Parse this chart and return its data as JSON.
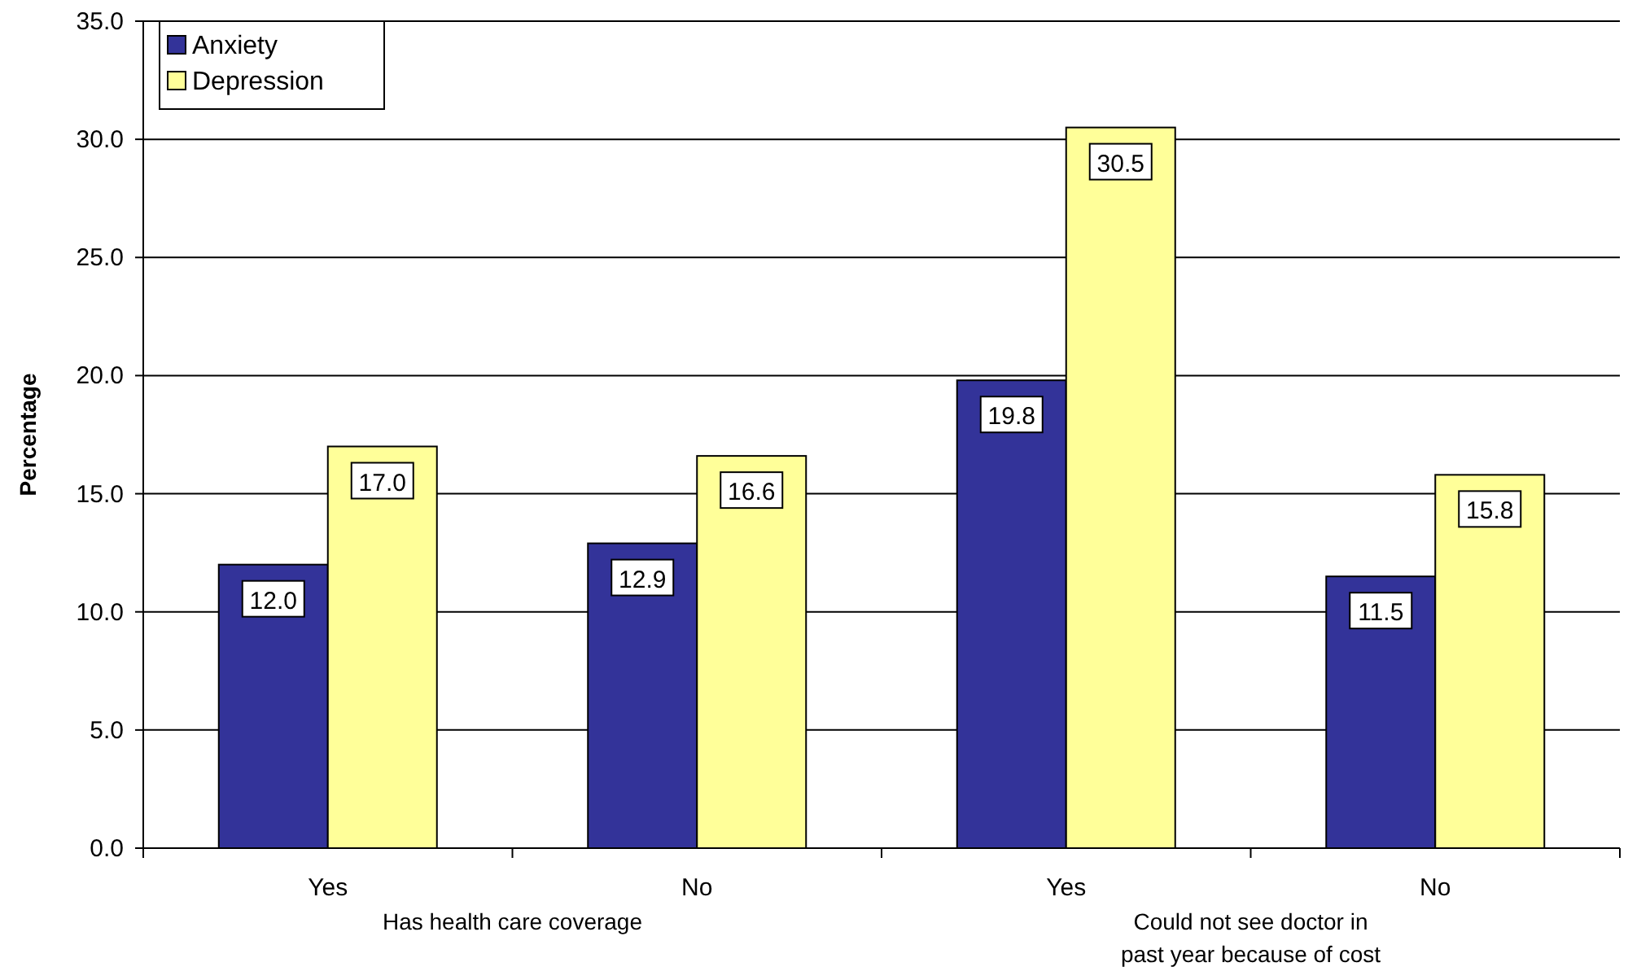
{
  "chart_data": {
    "type": "bar",
    "ylabel": "Percentage",
    "categories": [
      "Yes",
      "No",
      "Yes",
      "No"
    ],
    "annotations": [
      "Has health care coverage",
      "Could not see doctor in past year because of cost"
    ],
    "series": [
      {
        "name": "Anxiety",
        "color": "#333399",
        "values": [
          12.0,
          12.9,
          19.8,
          11.5
        ],
        "value_labels": [
          "12.0",
          "12.9",
          "19.8",
          "11.5"
        ]
      },
      {
        "name": "Depression",
        "color": "#ffff99",
        "values": [
          17.0,
          16.6,
          30.5,
          15.8
        ],
        "value_labels": [
          "17.0",
          "16.6",
          "30.5",
          "15.8"
        ]
      }
    ],
    "ylim": [
      0,
      35
    ],
    "yticks": [
      {
        "value": 0,
        "label": "0.0"
      },
      {
        "value": 5,
        "label": "5.0"
      },
      {
        "value": 10,
        "label": "10.0"
      },
      {
        "value": 15,
        "label": "15.0"
      },
      {
        "value": 20,
        "label": "20.0"
      },
      {
        "value": 25,
        "label": "25.0"
      },
      {
        "value": 30,
        "label": "30.0"
      },
      {
        "value": 35,
        "label": "35.0"
      }
    ],
    "grid": "y",
    "legend": "top left"
  }
}
